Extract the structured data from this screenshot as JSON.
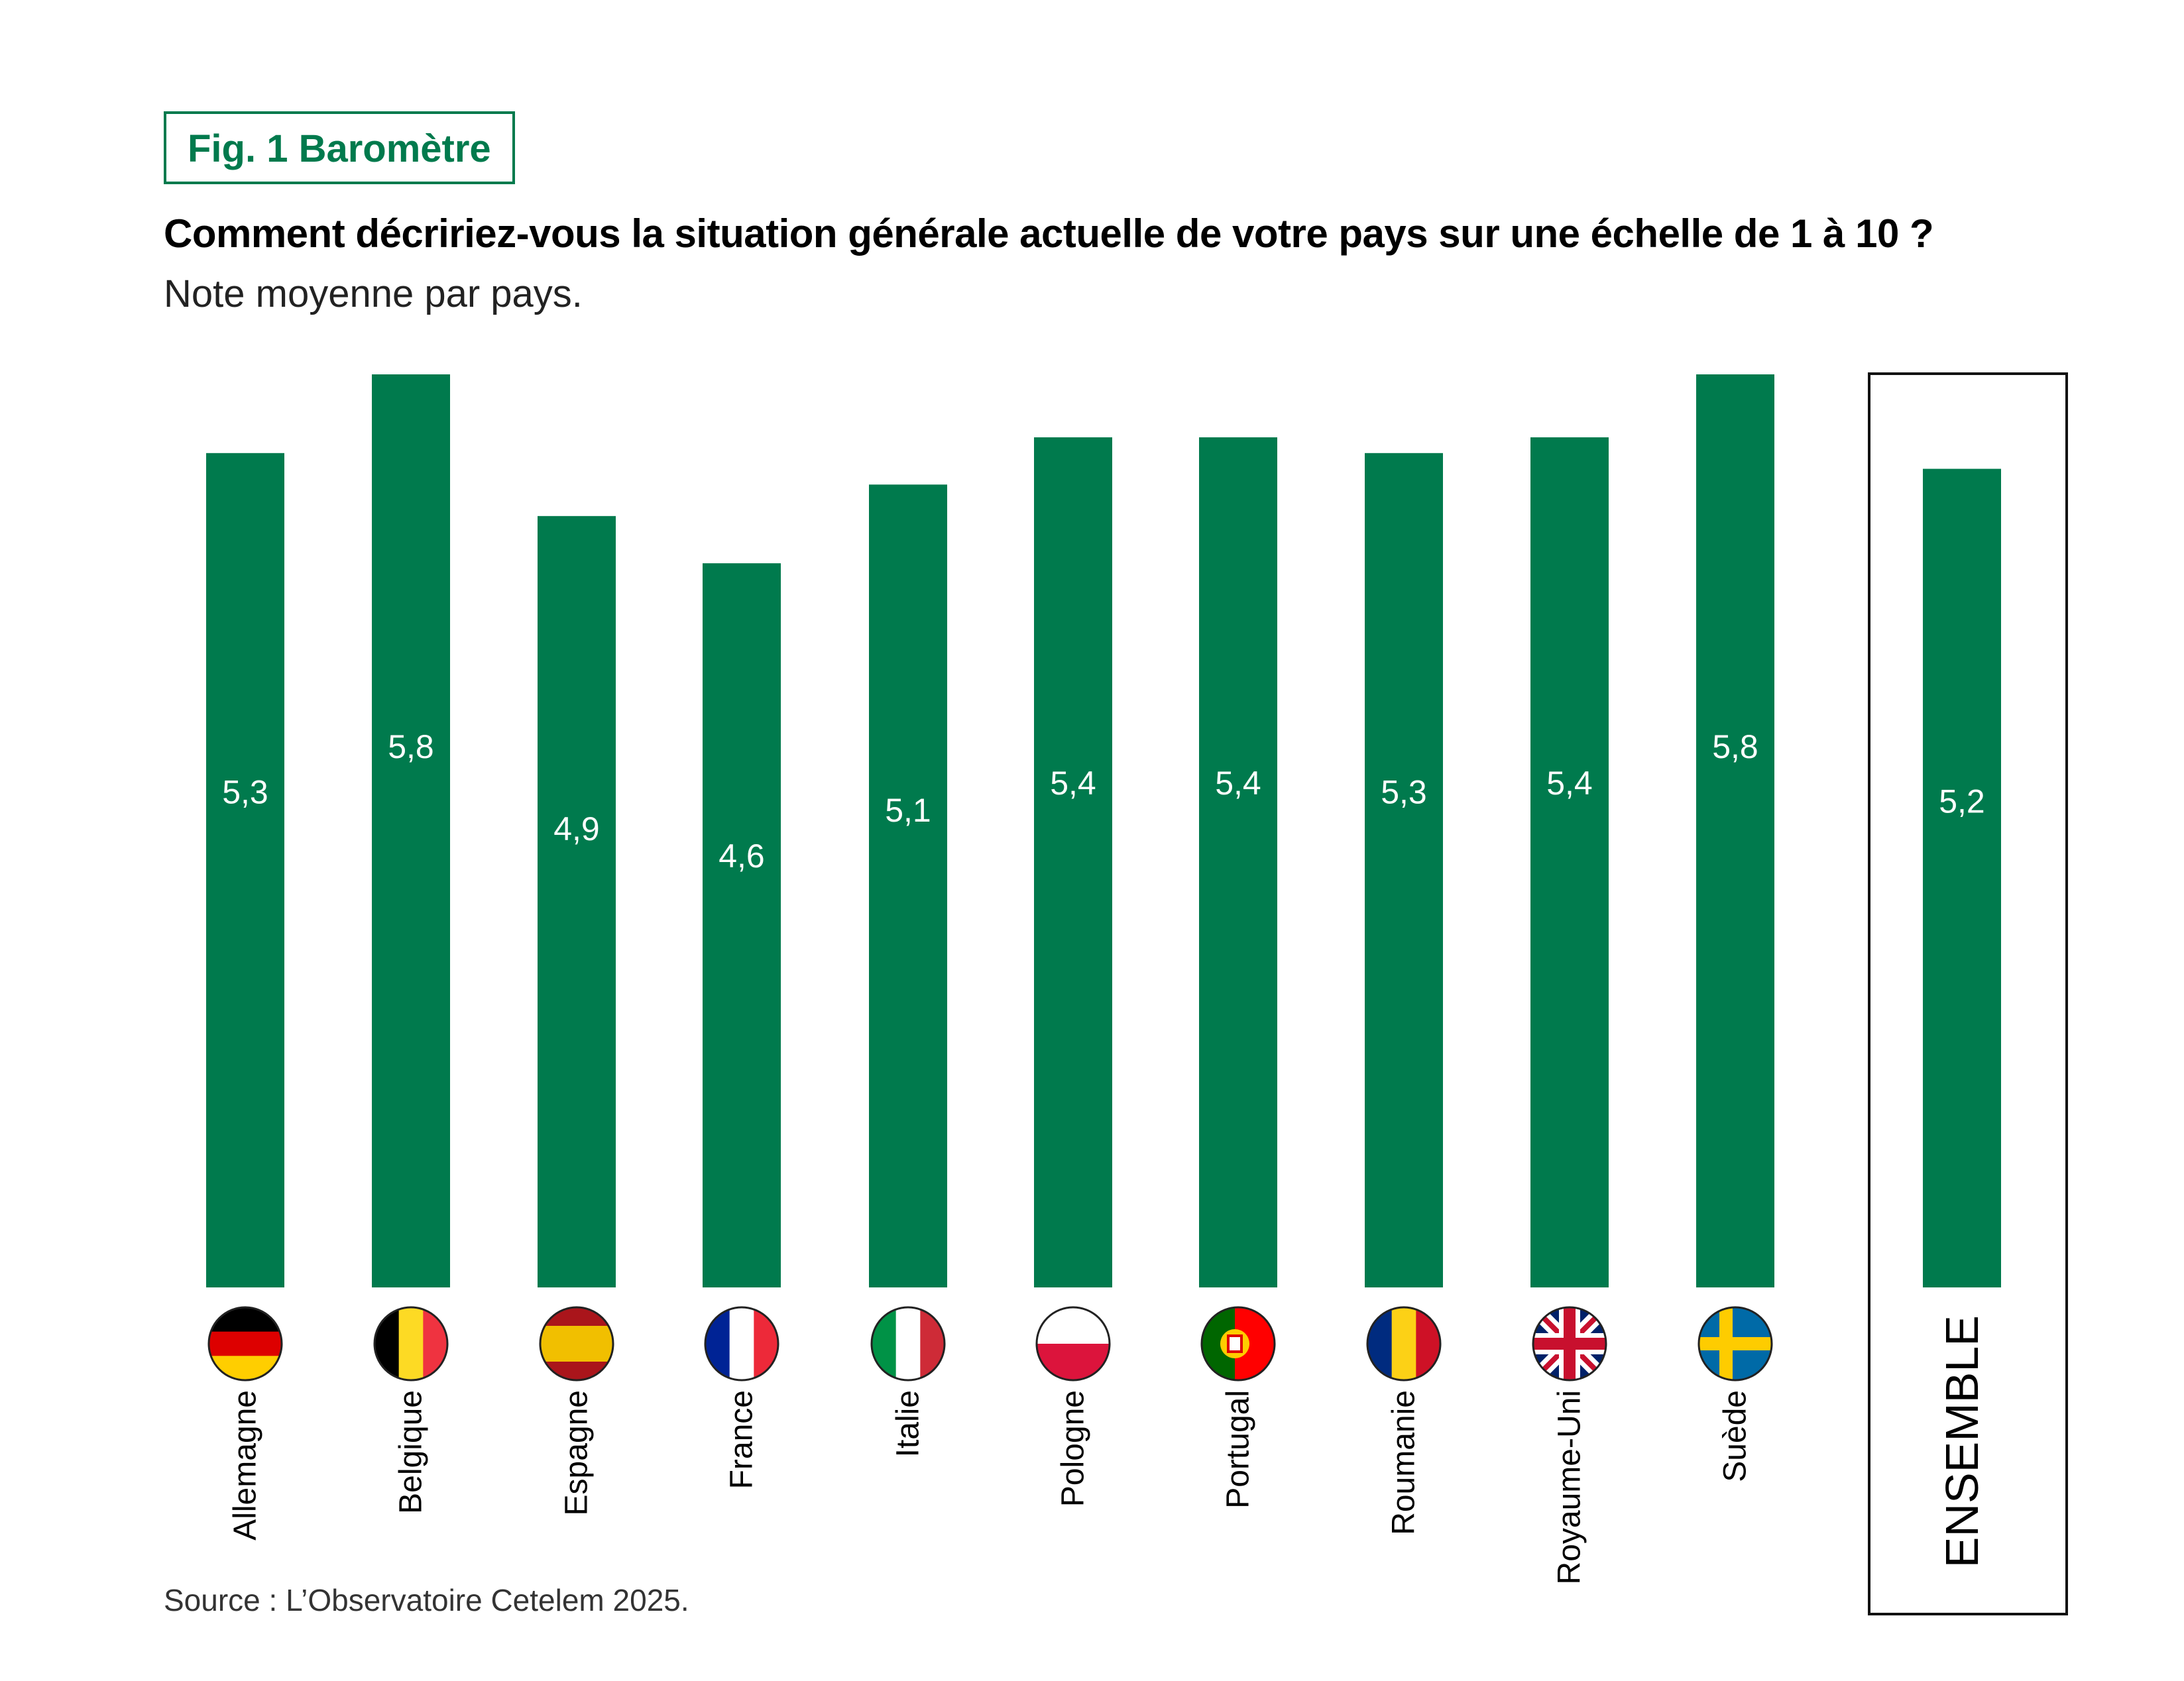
{
  "figure_tag": "Fig. 1 Baromètre",
  "question": "Comment décririez-vous la situation générale actuelle de votre pays sur une échelle de 1 à 10 ?",
  "subtitle": "Note moyenne par pays.",
  "source": "Source : L’Observatoire Cetelem 2025.",
  "colors": {
    "bar": "#007A4D",
    "frame": "#111111"
  },
  "chart_data": {
    "type": "bar",
    "title": "Comment décririez-vous la situation générale actuelle de votre pays sur une échelle de 1 à 10 ?",
    "xlabel": "",
    "ylabel": "",
    "ylim": [
      0,
      5.8
    ],
    "categories": [
      "Allemagne",
      "Belgique",
      "Espagne",
      "France",
      "Italie",
      "Pologne",
      "Portugal",
      "Roumanie",
      "Royaume-Uni",
      "Suède"
    ],
    "values": [
      5.3,
      5.8,
      4.9,
      4.6,
      5.1,
      5.4,
      5.4,
      5.3,
      5.4,
      5.8
    ],
    "value_labels": [
      "5,3",
      "5,8",
      "4,9",
      "4,6",
      "5,1",
      "5,4",
      "5,4",
      "5,3",
      "5,4",
      "5,8"
    ],
    "flags": [
      "germany-flag",
      "belgium-flag",
      "spain-flag",
      "france-flag",
      "italy-flag",
      "poland-flag",
      "portugal-flag",
      "romania-flag",
      "uk-flag",
      "sweden-flag"
    ],
    "total": {
      "label": "ENSEMBLE",
      "value": 5.2,
      "value_label": "5,2"
    }
  }
}
